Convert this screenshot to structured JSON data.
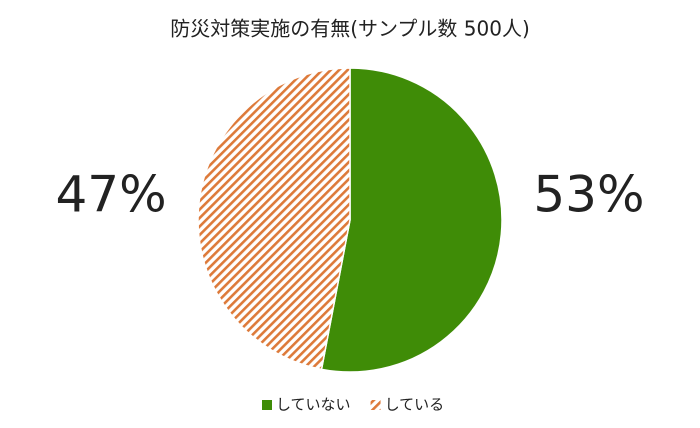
{
  "chart_data": {
    "type": "pie",
    "title": "防災対策実施の有無(サンプル数 500人)",
    "categories": [
      "していない",
      "している"
    ],
    "values": [
      53,
      47
    ],
    "value_labels": [
      "53%",
      "47%"
    ],
    "colors": [
      "#3f8c07",
      "#dd7a3a"
    ],
    "fills": [
      "solid",
      "hatch"
    ],
    "legend": "bottom"
  }
}
